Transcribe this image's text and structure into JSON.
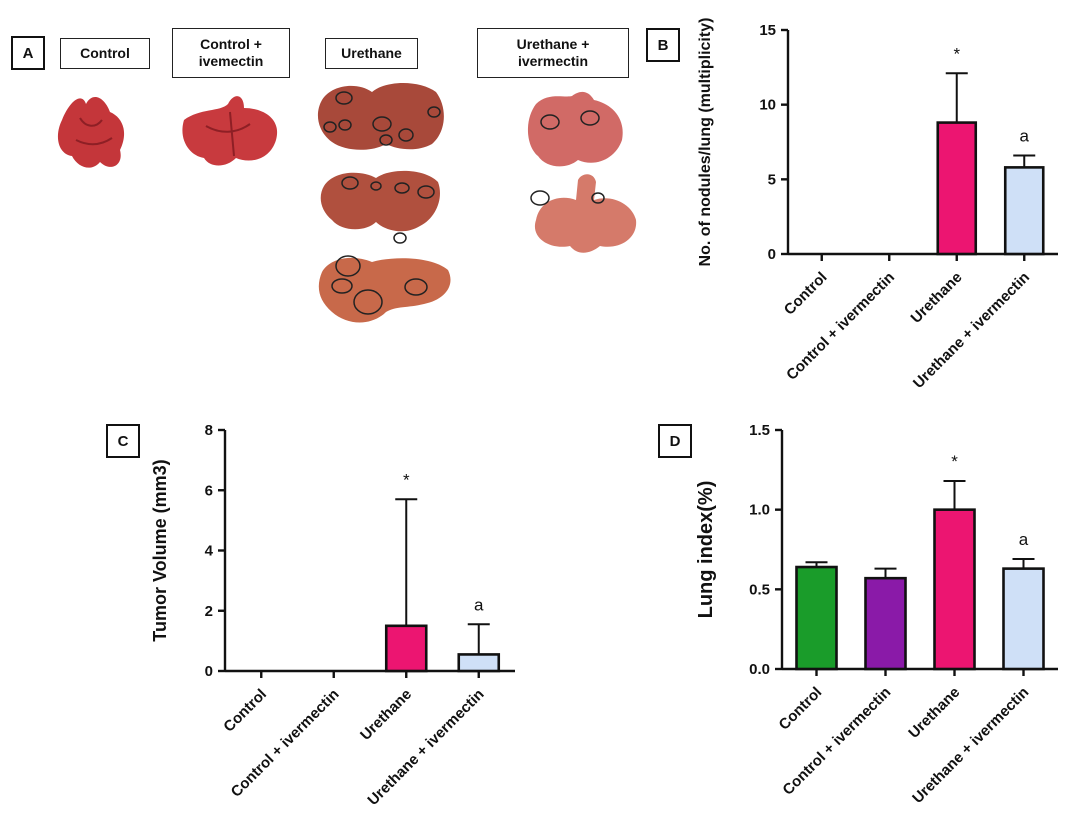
{
  "panel_a": {
    "label": "A",
    "groups": [
      "Control",
      "Control +\nivemectin",
      "Urethane",
      "Urethane +\nivermectin"
    ]
  },
  "chart_data": [
    {
      "panel": "B",
      "type": "bar",
      "categories": [
        "Control",
        "Control + ivermectin",
        "Urethane",
        "Urethane + ivermectin"
      ],
      "values": [
        0,
        0,
        8.8,
        5.8
      ],
      "errors": [
        0,
        0,
        3.3,
        0.8
      ],
      "annotations": [
        "",
        "",
        "*",
        "a"
      ],
      "colors": [
        "#1a9c2a",
        "#8a1aa8",
        "#ec1571",
        "#cfe0f7"
      ],
      "ylabel": "No. of nodules/lung (multiplicity)",
      "ylim": [
        0,
        15
      ],
      "yticks": [
        "0",
        "5",
        "10",
        "15"
      ]
    },
    {
      "panel": "C",
      "type": "bar",
      "categories": [
        "Control",
        "Control + ivermectin",
        "Urethane",
        "Urethane + ivermectin"
      ],
      "values": [
        0,
        0,
        1.5,
        0.55
      ],
      "errors": [
        0,
        0,
        4.2,
        1.0
      ],
      "annotations": [
        "",
        "",
        "*",
        "a"
      ],
      "colors": [
        "#1a9c2a",
        "#8a1aa8",
        "#ec1571",
        "#cfe0f7"
      ],
      "ylabel": "Tumor Volume (mm3)",
      "ylim": [
        0,
        8
      ],
      "yticks": [
        "0",
        "2",
        "4",
        "6",
        "8"
      ]
    },
    {
      "panel": "D",
      "type": "bar",
      "categories": [
        "Control",
        "Control + ivermectin",
        "Urethane",
        "Urethane + ivermectin"
      ],
      "values": [
        0.64,
        0.57,
        1.0,
        0.63
      ],
      "errors": [
        0.03,
        0.06,
        0.18,
        0.06
      ],
      "annotations": [
        "",
        "",
        "*",
        "a"
      ],
      "colors": [
        "#1a9c2a",
        "#8a1aa8",
        "#ec1571",
        "#cfe0f7"
      ],
      "ylabel": "Lung index(%)",
      "ylim": [
        0,
        1.5
      ],
      "yticks": [
        "0.0",
        "0.5",
        "1.0",
        "1.5"
      ]
    }
  ]
}
